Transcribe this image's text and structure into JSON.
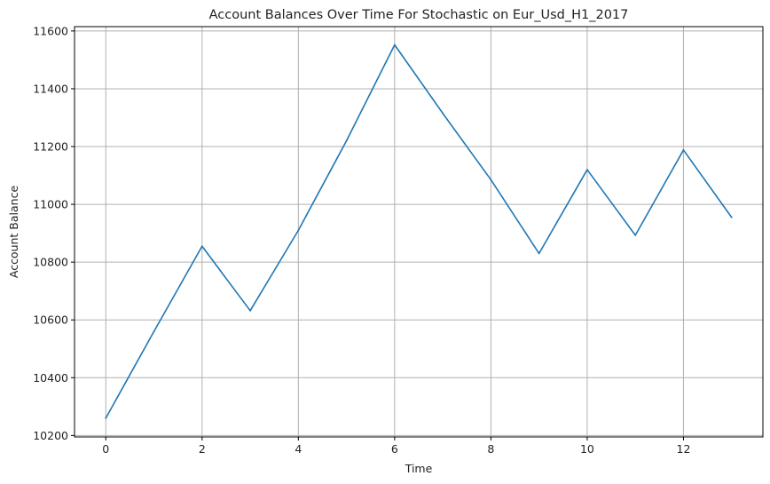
{
  "chart_data": {
    "type": "line",
    "title": "Account Balances Over Time For Stochastic on Eur_Usd_H1_2017",
    "xlabel": "Time",
    "ylabel": "Account Balance",
    "x": [
      0,
      1,
      2,
      3,
      4,
      5,
      6,
      7,
      8,
      9,
      10,
      11,
      12,
      13
    ],
    "series": [
      {
        "color": "#1f77b4",
        "values": [
          10260,
          10560,
          10855,
          10632,
          10910,
          11220,
          11552,
          11315,
          11085,
          10830,
          11120,
          10893,
          11188,
          10955
        ]
      }
    ],
    "xlim": [
      -0.65,
      13.65
    ],
    "ylim": [
      10195,
      11615
    ],
    "xticks": [
      0,
      2,
      4,
      6,
      8,
      10,
      12
    ],
    "yticks": [
      10200,
      10400,
      10600,
      10800,
      11000,
      11200,
      11400,
      11600
    ],
    "xtick_labels": [
      "0",
      "2",
      "4",
      "6",
      "8",
      "10",
      "12"
    ],
    "ytick_labels": [
      "10200",
      "10400",
      "10600",
      "10800",
      "11000",
      "11200",
      "11400",
      "11600"
    ],
    "grid": true,
    "colors": {
      "line": "#1f77b4",
      "grid": "#b0b0b0",
      "axis": "#000000"
    }
  }
}
